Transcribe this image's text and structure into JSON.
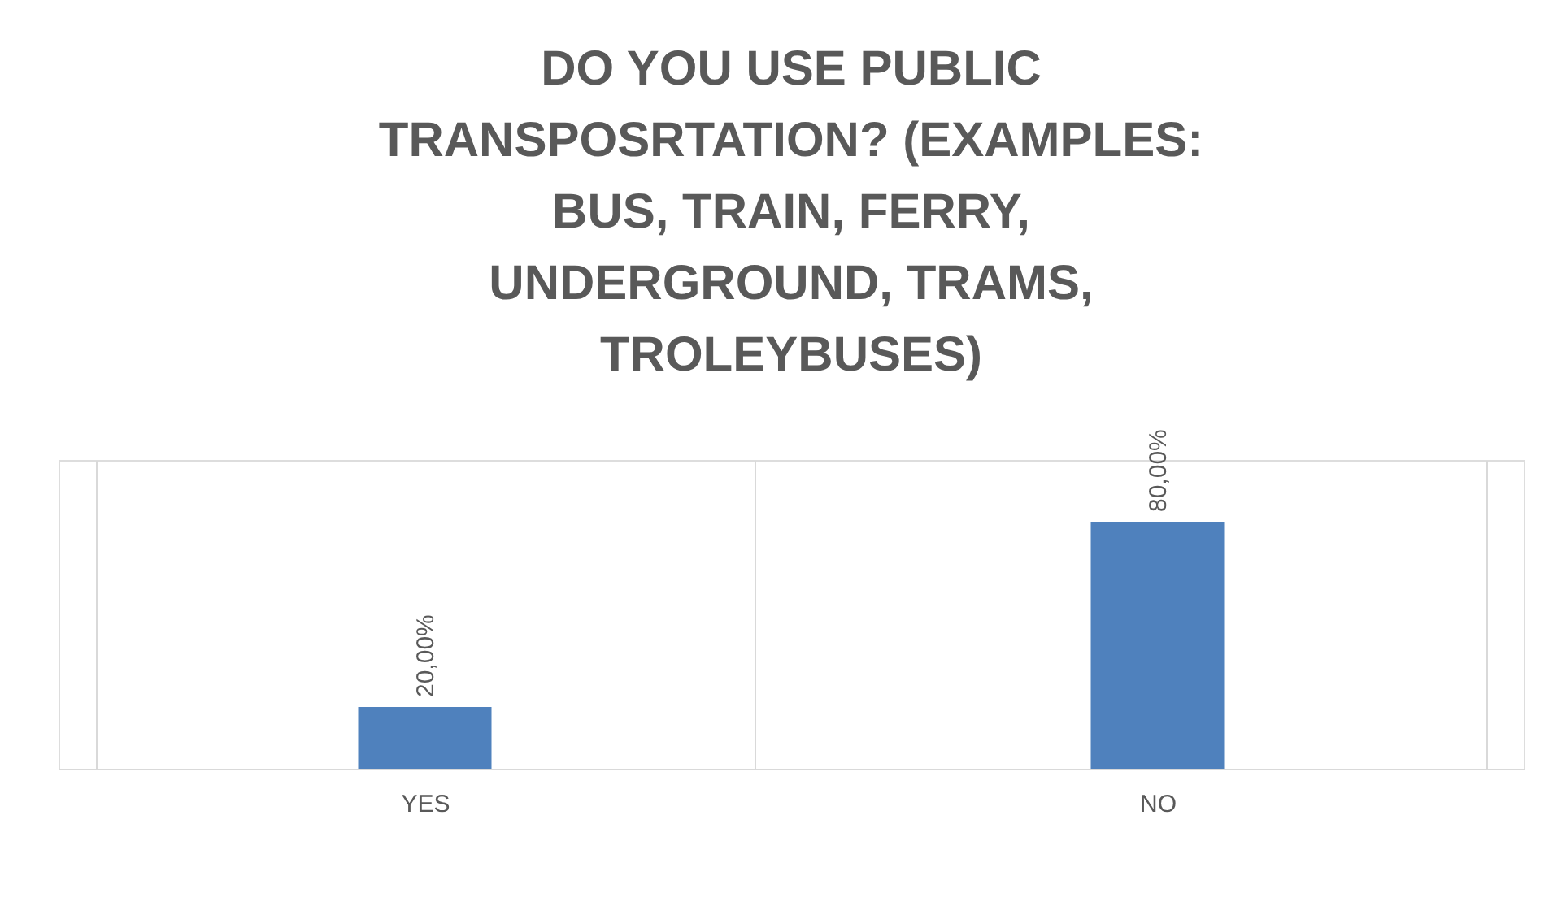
{
  "chart_data": {
    "type": "bar",
    "title": "DO YOU USE PUBLIC TRANSPOSRTATION? (EXAMPLES:  BUS, TRAIN, FERRY, UNDERGROUND, TRAMS, TROLEYBUSES)",
    "categories": [
      "YES",
      "NO"
    ],
    "values": [
      20,
      80
    ],
    "value_labels": [
      "20,00%",
      "80,00%"
    ],
    "color": "#4f81bd",
    "ylim": [
      0,
      100
    ],
    "grid": "x"
  }
}
